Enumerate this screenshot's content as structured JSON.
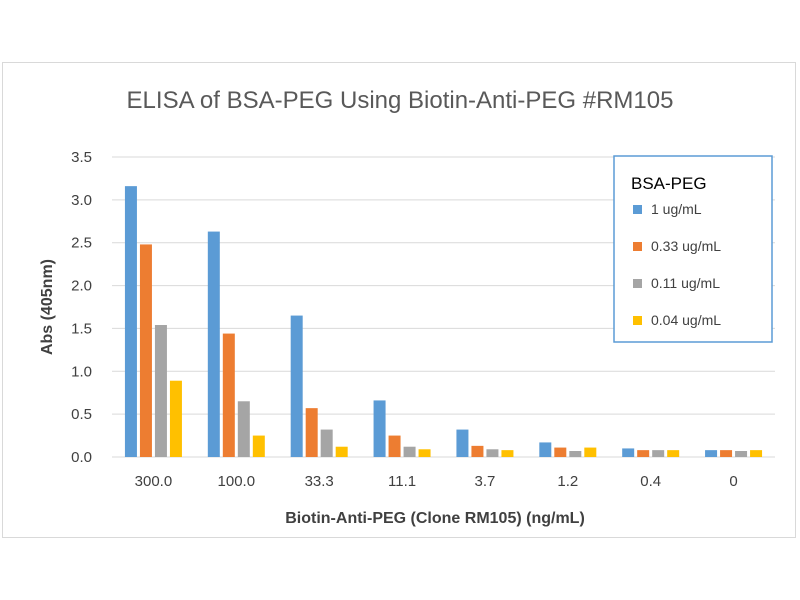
{
  "chart_data": {
    "type": "bar",
    "title": "ELISA of BSA-PEG Using Biotin-Anti-PEG #RM105",
    "xlabel": "Biotin-Anti-PEG  (Clone RM105) (ng/mL)",
    "ylabel": "Abs (405nm)",
    "ylim": [
      0,
      3.5
    ],
    "yticks": [
      "0.0",
      "0.5",
      "1.0",
      "1.5",
      "2.0",
      "2.5",
      "3.0",
      "3.5"
    ],
    "grid": true,
    "legend_title": "BSA-PEG",
    "legend_position": "top-right",
    "categories": [
      "300.0",
      "100.0",
      "33.3",
      "11.1",
      "3.7",
      "1.2",
      "0.4",
      "0"
    ],
    "series": [
      {
        "name": "1 ug/mL",
        "color": "#5b9bd5",
        "values": [
          3.16,
          2.63,
          1.65,
          0.66,
          0.32,
          0.17,
          0.1,
          0.08
        ]
      },
      {
        "name": "0.33 ug/mL",
        "color": "#ed7d31",
        "values": [
          2.48,
          1.44,
          0.57,
          0.25,
          0.13,
          0.11,
          0.08,
          0.08
        ]
      },
      {
        "name": "0.11 ug/mL",
        "color": "#a5a5a5",
        "values": [
          1.54,
          0.65,
          0.32,
          0.12,
          0.09,
          0.07,
          0.08,
          0.07
        ]
      },
      {
        "name": "0.04 ug/mL",
        "color": "#ffc000",
        "values": [
          0.89,
          0.25,
          0.12,
          0.09,
          0.08,
          0.11,
          0.08,
          0.08
        ]
      }
    ]
  }
}
